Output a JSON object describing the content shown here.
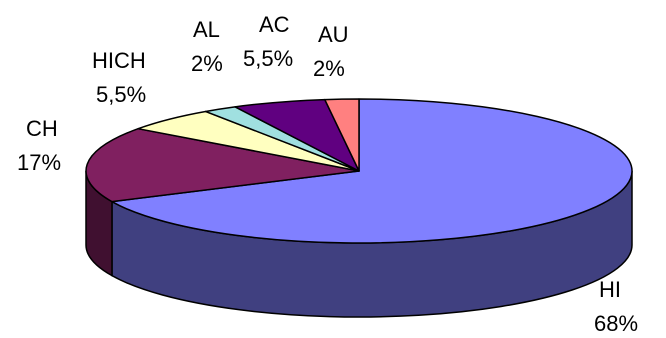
{
  "chart_data": {
    "type": "pie",
    "style": "3d-exploded-none",
    "start": "12 o'clock, clockwise",
    "slices": [
      {
        "label": "HI",
        "value": 68,
        "value_text": "68%",
        "color": "#8080ff",
        "side_color": "#404080"
      },
      {
        "label": "CH",
        "value": 17,
        "value_text": "17%",
        "color": "#802060",
        "side_color": "#401030"
      },
      {
        "label": "HICH",
        "value": 5.5,
        "value_text": "5,5%",
        "color": "#ffffc0",
        "side_color": "#808060"
      },
      {
        "label": "AL",
        "value": 2,
        "value_text": "2%",
        "color": "#a0e0e0",
        "side_color": "#507070"
      },
      {
        "label": "AC",
        "value": 5.5,
        "value_text": "5,5%",
        "color": "#600080",
        "side_color": "#300040"
      },
      {
        "label": "AU",
        "value": 2,
        "value_text": "2%",
        "color": "#ff8080",
        "side_color": "#804040"
      }
    ]
  }
}
